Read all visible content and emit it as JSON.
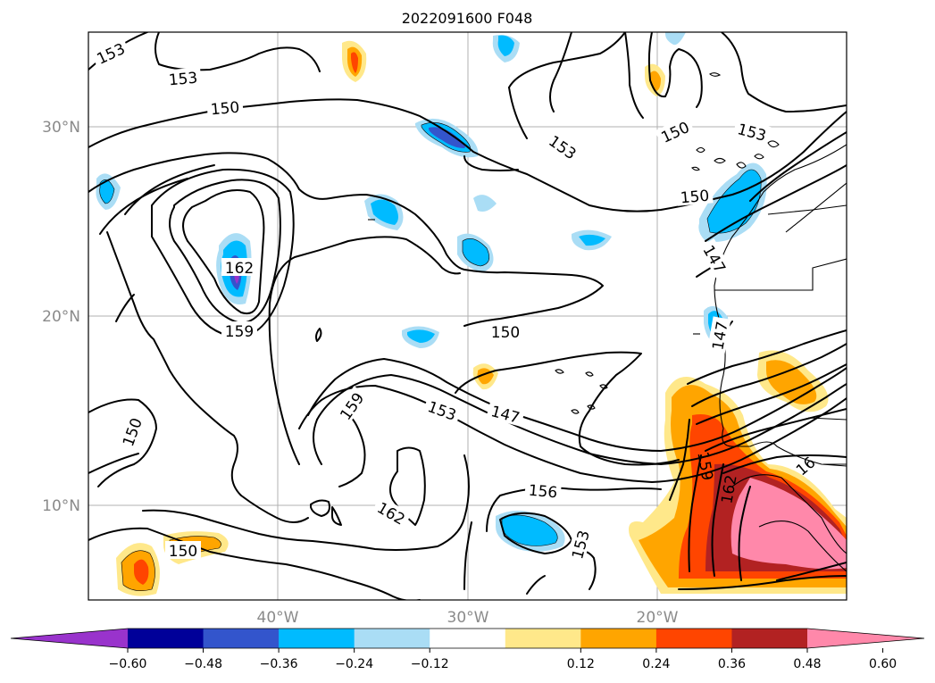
{
  "map": {
    "title": "2022091600 F048",
    "lon_labels": [
      "40°W",
      "30°W",
      "20°W"
    ],
    "lat_labels": [
      "30°N",
      "20°N",
      "10°N"
    ],
    "contour_labels": [
      "153",
      "153",
      "150",
      "153",
      "150",
      "153",
      "150",
      "147",
      "162",
      "159",
      "150",
      "159",
      "153",
      "147",
      "150",
      "147",
      "156",
      "162",
      "150",
      "153",
      "159",
      "162",
      "16"
    ],
    "colorbar_ticks": [
      "−0.60",
      "−0.48",
      "−0.36",
      "−0.24",
      "−0.12",
      "0.12",
      "0.24",
      "0.36",
      "0.48",
      "0.60"
    ],
    "colorbar_colors": [
      "#9933cc",
      "#000099",
      "#3355cc",
      "#00bbff",
      "#aaddf5",
      "#ffffff",
      "#ffe88a",
      "#ffa500",
      "#ff4500",
      "#b22222",
      "#ff88aa"
    ]
  }
}
